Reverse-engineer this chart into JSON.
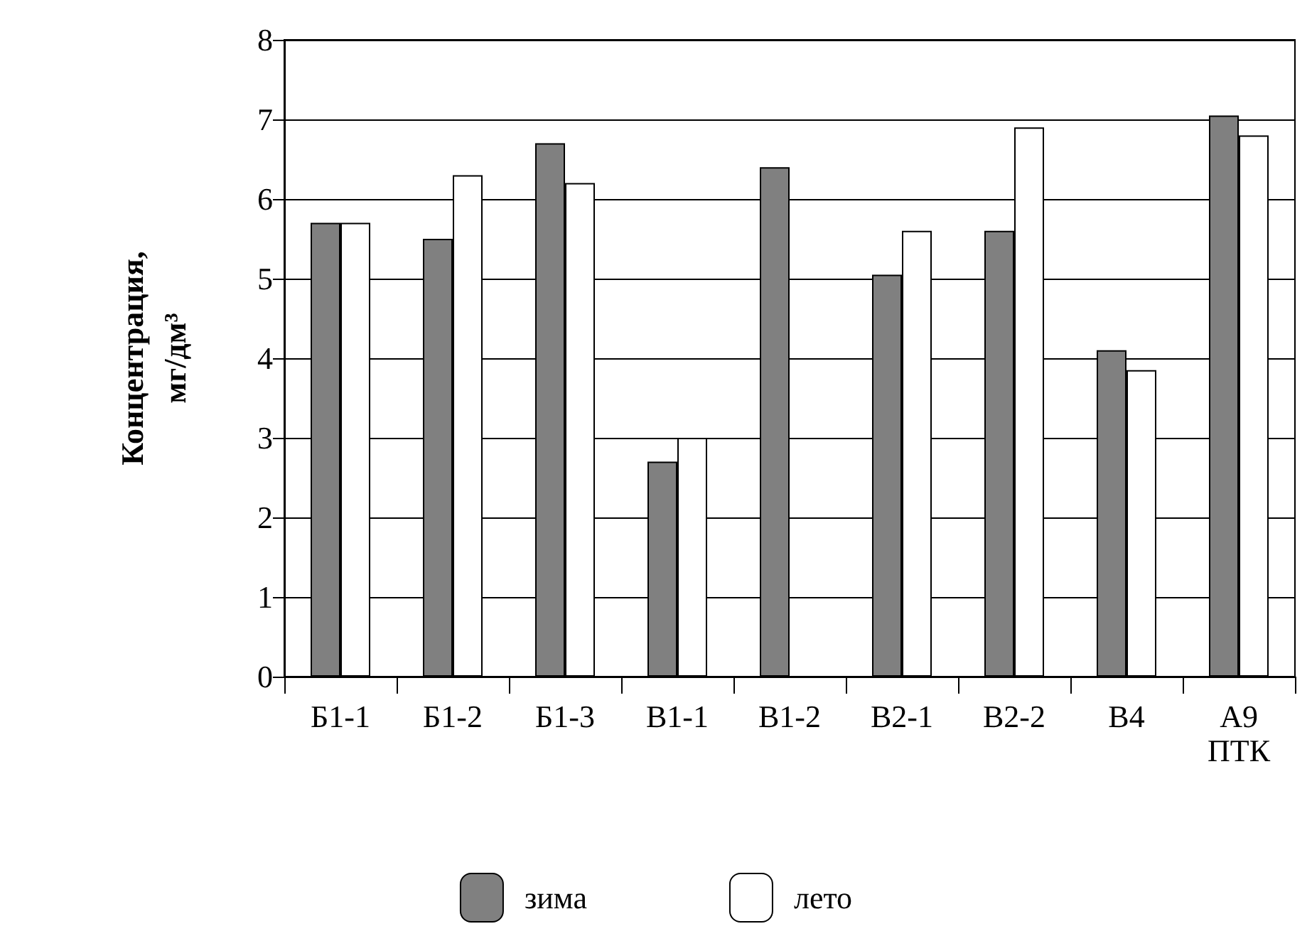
{
  "chart_data": {
    "type": "bar",
    "ylabel": "Концентрация, мг/дм³",
    "categories": [
      "Б1-1",
      "Б1-2",
      "Б1-3",
      "В1-1",
      "В1-2",
      "В2-1",
      "В2-2",
      "В4",
      "А9 ПТК"
    ],
    "series": [
      {
        "name": "зима",
        "color": "#808080",
        "values": [
          5.7,
          5.5,
          6.7,
          2.7,
          6.4,
          5.05,
          5.6,
          4.1,
          7.05
        ]
      },
      {
        "name": "лето",
        "color": "#ffffff",
        "values": [
          5.7,
          6.3,
          6.2,
          3.0,
          null,
          5.6,
          6.9,
          3.85,
          6.8
        ]
      }
    ],
    "ylim": [
      0,
      8
    ],
    "yticks": [
      0,
      1,
      2,
      3,
      4,
      5,
      6,
      7,
      8
    ],
    "grid": "y",
    "legend": "bottom"
  }
}
